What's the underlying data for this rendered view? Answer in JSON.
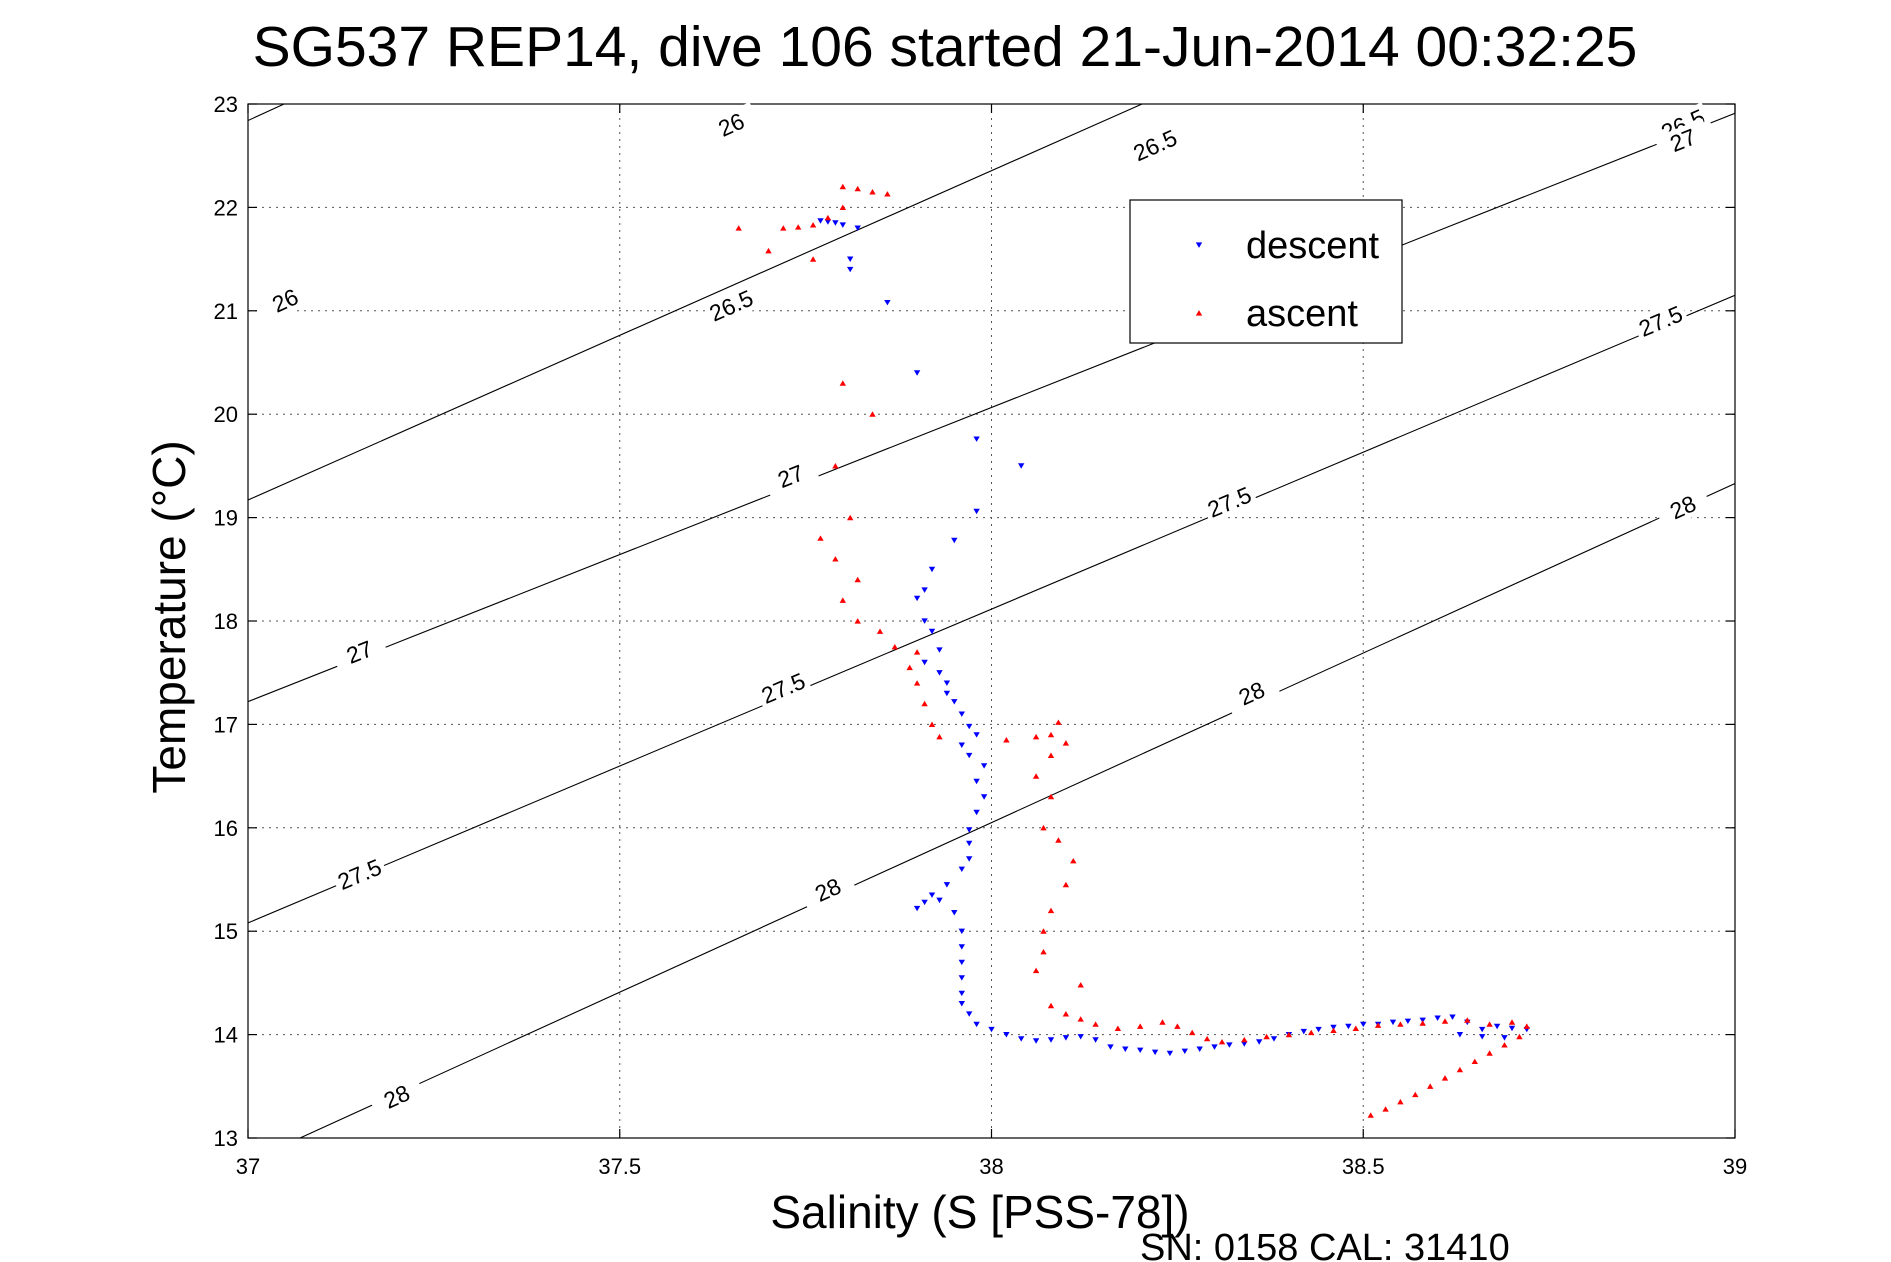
{
  "chart_data": {
    "type": "scatter",
    "title": "SG537 REP14, dive 106 started 21-Jun-2014 00:32:25",
    "xlabel": "Salinity (S [PSS-78])",
    "ylabel": "Temperature (°C)",
    "xlim": [
      37,
      39
    ],
    "ylim": [
      13,
      23
    ],
    "xticks": [
      37,
      37.5,
      38,
      38.5,
      39
    ],
    "xtick_labels": [
      "37",
      "37.5",
      "38",
      "38.5",
      "39"
    ],
    "yticks": [
      13,
      14,
      15,
      16,
      17,
      18,
      19,
      20,
      21,
      22,
      23
    ],
    "ytick_labels": [
      "13",
      "14",
      "15",
      "16",
      "17",
      "18",
      "19",
      "20",
      "21",
      "22",
      "23"
    ],
    "grid": true,
    "legend_position": "top-right",
    "contours": [
      {
        "label": "26",
        "p1": [
          37,
          22.84
        ],
        "p2": [
          39,
          29.44
        ],
        "label_points": [
          [
            37.05,
            21.1
          ],
          [
            37.65,
            22.8
          ]
        ]
      },
      {
        "label": "26.5",
        "p1": [
          37,
          19.17
        ],
        "p2": [
          39,
          25.54
        ],
        "label_points": [
          [
            37.65,
            21.05
          ],
          [
            38.22,
            22.6
          ],
          [
            38.93,
            22.8
          ]
        ]
      },
      {
        "label": "27",
        "p1": [
          37,
          17.22
        ],
        "p2": [
          39,
          22.91
        ],
        "label_points": [
          [
            37.15,
            17.7
          ],
          [
            37.73,
            19.4
          ],
          [
            38.93,
            22.65
          ]
        ]
      },
      {
        "label": "27.5",
        "p1": [
          37,
          15.08
        ],
        "p2": [
          39,
          21.15
        ],
        "label_points": [
          [
            37.15,
            15.55
          ],
          [
            37.72,
            17.35
          ],
          [
            38.32,
            19.15
          ],
          [
            38.9,
            20.9
          ]
        ]
      },
      {
        "label": "28",
        "p1": [
          37.07,
          13
        ],
        "p2": [
          39,
          19.33
        ],
        "label_points": [
          [
            37.2,
            13.4
          ],
          [
            37.78,
            15.4
          ],
          [
            38.35,
            17.3
          ],
          [
            38.93,
            19.1
          ]
        ]
      }
    ],
    "series": [
      {
        "name": "descent",
        "color": "#0000ff",
        "marker": "triangle-down",
        "points": [
          [
            37.77,
            21.87
          ],
          [
            37.78,
            21.86
          ],
          [
            37.79,
            21.85
          ],
          [
            37.8,
            21.83
          ],
          [
            37.82,
            21.8
          ],
          [
            37.81,
            21.5
          ],
          [
            37.81,
            21.4
          ],
          [
            37.86,
            21.08
          ],
          [
            37.9,
            20.4
          ],
          [
            37.98,
            19.76
          ],
          [
            38.04,
            19.5
          ],
          [
            37.98,
            19.06
          ],
          [
            37.95,
            18.78
          ],
          [
            37.92,
            18.5
          ],
          [
            37.91,
            18.3
          ],
          [
            37.9,
            18.22
          ],
          [
            37.91,
            18.0
          ],
          [
            37.92,
            17.9
          ],
          [
            37.93,
            17.72
          ],
          [
            37.91,
            17.6
          ],
          [
            37.93,
            17.5
          ],
          [
            37.94,
            17.4
          ],
          [
            37.94,
            17.3
          ],
          [
            37.95,
            17.22
          ],
          [
            37.96,
            17.1
          ],
          [
            37.97,
            16.98
          ],
          [
            37.98,
            16.9
          ],
          [
            37.96,
            16.8
          ],
          [
            37.97,
            16.7
          ],
          [
            37.99,
            16.6
          ],
          [
            37.98,
            16.45
          ],
          [
            37.99,
            16.3
          ],
          [
            37.98,
            16.15
          ],
          [
            37.97,
            15.98
          ],
          [
            37.97,
            15.85
          ],
          [
            37.97,
            15.7
          ],
          [
            37.96,
            15.6
          ],
          [
            37.94,
            15.45
          ],
          [
            37.92,
            15.35
          ],
          [
            37.9,
            15.22
          ],
          [
            37.91,
            15.28
          ],
          [
            37.93,
            15.3
          ],
          [
            37.95,
            15.18
          ],
          [
            37.96,
            15.0
          ],
          [
            37.96,
            14.85
          ],
          [
            37.96,
            14.7
          ],
          [
            37.96,
            14.55
          ],
          [
            37.96,
            14.4
          ],
          [
            37.96,
            14.3
          ],
          [
            37.97,
            14.2
          ],
          [
            37.98,
            14.1
          ],
          [
            38.0,
            14.05
          ],
          [
            38.02,
            14.0
          ],
          [
            38.04,
            13.96
          ],
          [
            38.06,
            13.94
          ],
          [
            38.08,
            13.95
          ],
          [
            38.1,
            13.97
          ],
          [
            38.12,
            13.98
          ],
          [
            38.14,
            13.95
          ],
          [
            38.16,
            13.88
          ],
          [
            38.18,
            13.86
          ],
          [
            38.2,
            13.85
          ],
          [
            38.22,
            13.83
          ],
          [
            38.24,
            13.82
          ],
          [
            38.26,
            13.84
          ],
          [
            38.28,
            13.86
          ],
          [
            38.3,
            13.88
          ],
          [
            38.32,
            13.9
          ],
          [
            38.34,
            13.91
          ],
          [
            38.36,
            13.93
          ],
          [
            38.38,
            13.96
          ],
          [
            38.4,
            14.0
          ],
          [
            38.42,
            14.03
          ],
          [
            38.44,
            14.05
          ],
          [
            38.46,
            14.07
          ],
          [
            38.48,
            14.08
          ],
          [
            38.5,
            14.1
          ],
          [
            38.52,
            14.1
          ],
          [
            38.54,
            14.12
          ],
          [
            38.56,
            14.13
          ],
          [
            38.58,
            14.14
          ],
          [
            38.6,
            14.16
          ],
          [
            38.62,
            14.17
          ],
          [
            38.64,
            14.12
          ],
          [
            38.66,
            14.05
          ],
          [
            38.68,
            14.08
          ],
          [
            38.7,
            14.06
          ],
          [
            38.72,
            14.05
          ],
          [
            38.63,
            14.0
          ],
          [
            38.66,
            13.98
          ],
          [
            38.69,
            13.97
          ]
        ]
      },
      {
        "name": "ascent",
        "color": "#ff0000",
        "marker": "triangle-up",
        "points": [
          [
            38.51,
            13.22
          ],
          [
            38.53,
            13.28
          ],
          [
            38.55,
            13.35
          ],
          [
            38.57,
            13.42
          ],
          [
            38.59,
            13.5
          ],
          [
            38.61,
            13.58
          ],
          [
            38.63,
            13.66
          ],
          [
            38.65,
            13.74
          ],
          [
            38.67,
            13.82
          ],
          [
            38.69,
            13.9
          ],
          [
            38.71,
            13.98
          ],
          [
            38.72,
            14.08
          ],
          [
            38.7,
            14.12
          ],
          [
            38.67,
            14.1
          ],
          [
            38.64,
            14.14
          ],
          [
            38.61,
            14.13
          ],
          [
            38.58,
            14.11
          ],
          [
            38.55,
            14.1
          ],
          [
            38.52,
            14.09
          ],
          [
            38.49,
            14.06
          ],
          [
            38.46,
            14.04
          ],
          [
            38.43,
            14.02
          ],
          [
            38.4,
            14.0
          ],
          [
            38.37,
            13.98
          ],
          [
            38.34,
            13.95
          ],
          [
            38.31,
            13.93
          ],
          [
            38.29,
            13.96
          ],
          [
            38.27,
            14.02
          ],
          [
            38.25,
            14.08
          ],
          [
            38.23,
            14.12
          ],
          [
            38.2,
            14.08
          ],
          [
            38.17,
            14.06
          ],
          [
            38.14,
            14.1
          ],
          [
            38.12,
            14.15
          ],
          [
            38.1,
            14.2
          ],
          [
            38.08,
            14.28
          ],
          [
            38.12,
            14.48
          ],
          [
            38.07,
            14.8
          ],
          [
            38.06,
            14.62
          ],
          [
            38.07,
            15.0
          ],
          [
            38.08,
            15.2
          ],
          [
            38.1,
            15.45
          ],
          [
            38.11,
            15.68
          ],
          [
            38.09,
            15.88
          ],
          [
            38.07,
            16.0
          ],
          [
            38.08,
            16.3
          ],
          [
            38.06,
            16.5
          ],
          [
            38.08,
            16.7
          ],
          [
            38.1,
            16.82
          ],
          [
            38.09,
            17.02
          ],
          [
            38.08,
            16.9
          ],
          [
            38.06,
            16.88
          ],
          [
            38.02,
            16.85
          ],
          [
            37.93,
            16.88
          ],
          [
            37.92,
            17.0
          ],
          [
            37.91,
            17.2
          ],
          [
            37.9,
            17.4
          ],
          [
            37.89,
            17.55
          ],
          [
            37.9,
            17.7
          ],
          [
            37.87,
            17.75
          ],
          [
            37.85,
            17.9
          ],
          [
            37.82,
            18.0
          ],
          [
            37.8,
            18.2
          ],
          [
            37.82,
            18.4
          ],
          [
            37.79,
            18.6
          ],
          [
            37.77,
            18.8
          ],
          [
            37.81,
            19.0
          ],
          [
            37.79,
            19.5
          ],
          [
            37.84,
            20.0
          ],
          [
            37.8,
            20.3
          ],
          [
            37.76,
            21.5
          ],
          [
            37.7,
            21.58
          ],
          [
            37.66,
            21.8
          ],
          [
            37.72,
            21.8
          ],
          [
            37.74,
            21.81
          ],
          [
            37.76,
            21.83
          ],
          [
            37.78,
            21.9
          ],
          [
            37.8,
            22.0
          ],
          [
            37.8,
            22.2
          ],
          [
            37.82,
            22.18
          ],
          [
            37.84,
            22.15
          ],
          [
            37.86,
            22.13
          ]
        ]
      }
    ]
  },
  "footer_text": "SN: 0158  CAL: 31410"
}
